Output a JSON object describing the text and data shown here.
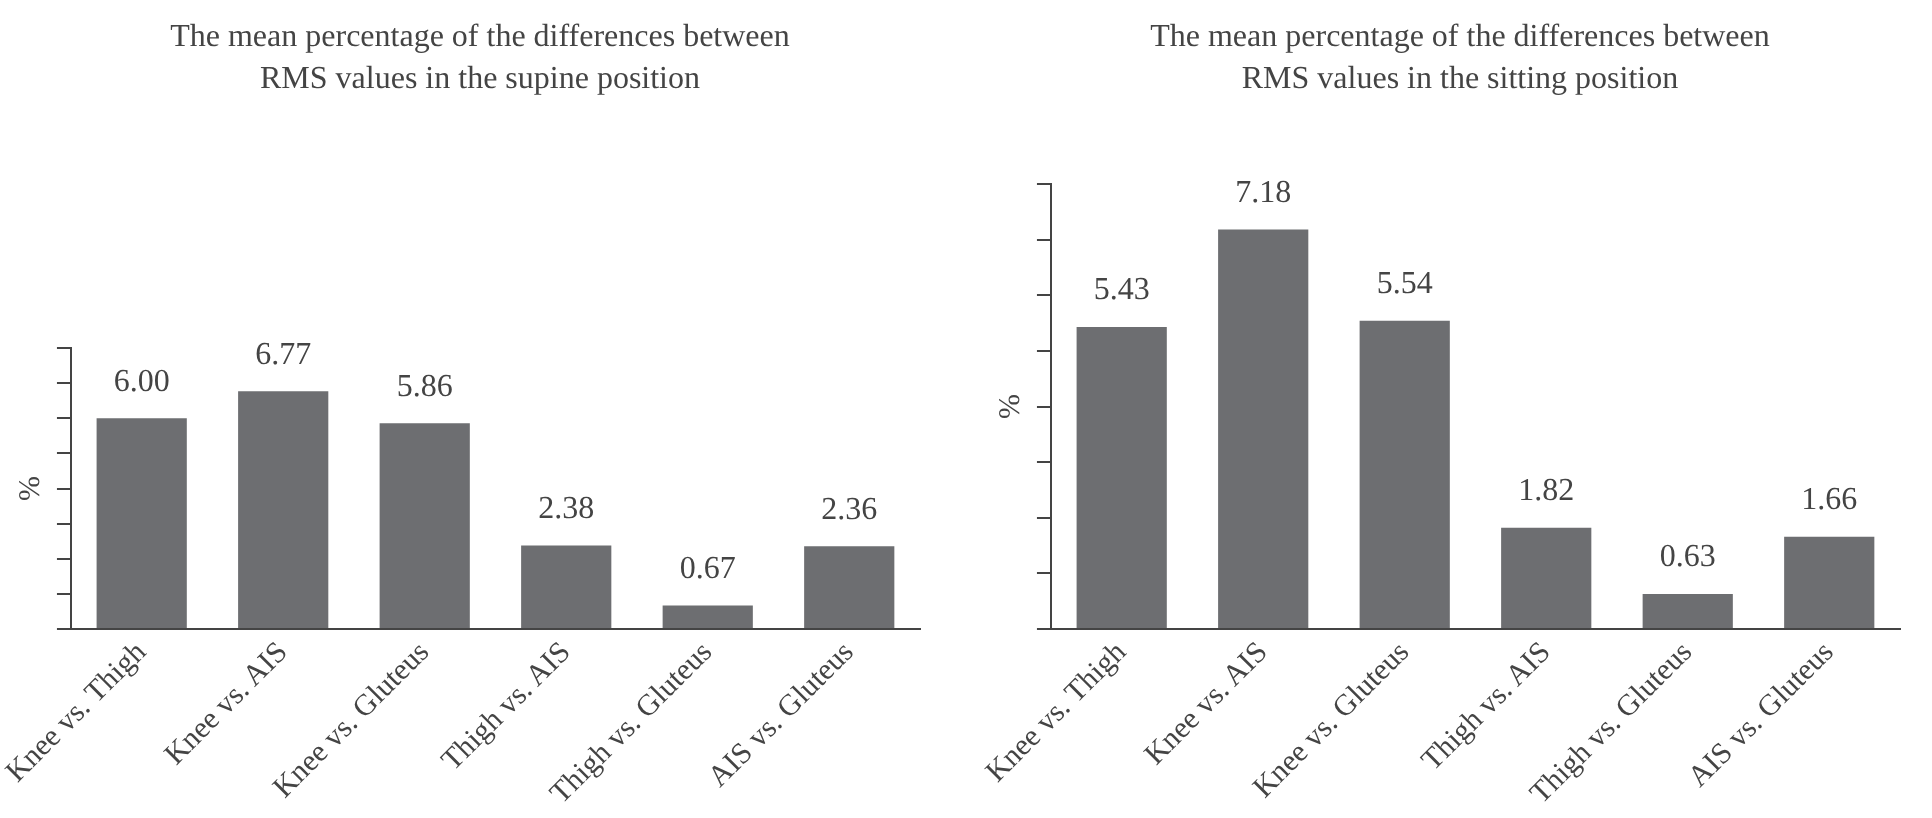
{
  "chart_data": [
    {
      "type": "bar",
      "title": "The mean percentage of the differences between RMS values in the supine position",
      "ylabel": "%",
      "categories": [
        "Knee vs. Thigh",
        "Knee vs. AIS",
        "Knee vs. Gluteus",
        "Thigh vs. AIS",
        "Thigh vs. Gluteus",
        "AIS vs. Gluteus"
      ],
      "values": [
        6.0,
        6.77,
        5.86,
        2.38,
        0.67,
        2.36
      ],
      "value_labels": [
        "6.00",
        "6.77",
        "5.86",
        "2.38",
        "0.67",
        "2.36"
      ],
      "color": "#6d6e71",
      "ylim": [
        0,
        8
      ],
      "yticks": [
        {
          "value": 0,
          "label": null
        },
        {
          "value": 1,
          "label": null
        },
        {
          "value": 2,
          "label": null
        },
        {
          "value": 3,
          "label": null
        },
        {
          "value": 4,
          "label": null
        },
        {
          "value": 5,
          "label": null
        },
        {
          "value": 6,
          "label": null
        },
        {
          "value": 7,
          "label": null
        },
        {
          "value": 8,
          "label": null
        }
      ],
      "tick_labels": "x",
      "grid": false,
      "legend": false
    },
    {
      "type": "bar",
      "title": "The mean percentage of the differences between RMS values in the sitting position",
      "ylabel": "%",
      "categories": [
        "Knee vs. Thigh",
        "Knee vs. AIS",
        "Knee vs. Gluteus",
        "Thigh vs. AIS",
        "Thigh vs. Gluteus",
        "AIS vs. Gluteus"
      ],
      "values": [
        5.43,
        7.18,
        5.54,
        1.82,
        0.63,
        1.66
      ],
      "value_labels": [
        "5.43",
        "7.18",
        "5.54",
        "1.82",
        "0.63",
        "1.66"
      ],
      "color": "#6d6e71",
      "ylim": [
        0,
        8
      ],
      "yticks": [
        {
          "value": 0,
          "label": null
        },
        {
          "value": 1,
          "label": null
        },
        {
          "value": 2,
          "label": null
        },
        {
          "value": 3,
          "label": null
        },
        {
          "value": 4,
          "label": null
        },
        {
          "value": 5,
          "label": null
        },
        {
          "value": 6,
          "label": null
        },
        {
          "value": 7,
          "label": null
        },
        {
          "value": 8,
          "label": null
        }
      ],
      "tick_labels": "x",
      "grid": false,
      "legend": false
    }
  ]
}
